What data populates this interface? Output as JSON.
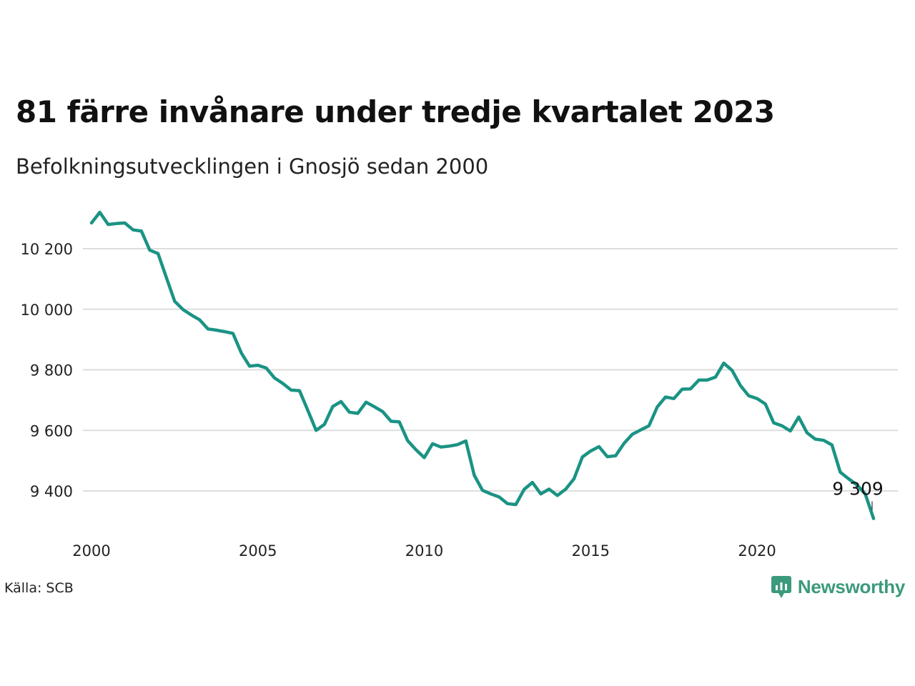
{
  "title": "81 färre invånare under tredje kvartalet 2023",
  "subtitle": "Befolkningsutvecklingen i Gnosjö sedan 2000",
  "source": "Källa: SCB",
  "brand": {
    "name": "Newsworthy",
    "icon": "newsworthy-logo-icon",
    "color": "#3b9a7c"
  },
  "colors": {
    "line": "#1a9384",
    "grid": "#dddddd",
    "text": "#111111"
  },
  "chart_data": {
    "type": "line",
    "title": "81 färre invånare under tredje kvartalet 2023",
    "subtitle": "Befolkningsutvecklingen i Gnosjö sedan 2000",
    "x_ticks": [
      2000,
      2005,
      2010,
      2015,
      2020
    ],
    "y_ticks": [
      9400,
      9600,
      9800,
      10000,
      10200
    ],
    "y_tick_labels": [
      "9 400",
      "9 600",
      "9 800",
      "10 000",
      "10 200"
    ],
    "ylim": [
      9320,
      10320
    ],
    "grid": "horizontal",
    "end_label": "9 309",
    "series": [
      {
        "x": [
          2000.0,
          2000.25,
          2000.5,
          2000.75,
          2001.0,
          2001.25,
          2001.5,
          2001.75,
          2002.0,
          2002.25,
          2002.5,
          2002.75,
          2003.0,
          2003.25,
          2003.5,
          2003.75,
          2004.0,
          2004.25,
          2004.5,
          2004.75,
          2005.0,
          2005.25,
          2005.5,
          2005.75,
          2006.0,
          2006.25,
          2006.5,
          2006.75,
          2007.0,
          2007.25,
          2007.5,
          2007.75,
          2008.0,
          2008.25,
          2008.5,
          2008.75,
          2009.0,
          2009.25,
          2009.5,
          2009.75,
          2010.0,
          2010.25,
          2010.5,
          2010.75,
          2011.0,
          2011.25,
          2011.5,
          2011.75,
          2012.0,
          2012.25,
          2012.5,
          2012.75,
          2013.0,
          2013.25,
          2013.5,
          2013.75,
          2014.0,
          2014.25,
          2014.5,
          2014.75,
          2015.0,
          2015.25,
          2015.5,
          2015.75,
          2016.0,
          2016.25,
          2016.5,
          2016.75,
          2017.0,
          2017.25,
          2017.5,
          2017.75,
          2018.0,
          2018.25,
          2018.5,
          2018.75,
          2019.0,
          2019.25,
          2019.5,
          2019.75,
          2020.0,
          2020.25,
          2020.5,
          2020.75,
          2021.0,
          2021.25,
          2021.5,
          2021.75,
          2022.0,
          2022.25,
          2022.5,
          2022.75,
          2023.0,
          2023.25,
          2023.5
        ],
        "y": [
          10285,
          10320,
          10280,
          10283,
          10285,
          10262,
          10258,
          10195,
          10184,
          10105,
          10026,
          9999,
          9981,
          9965,
          9935,
          9931,
          9926,
          9920,
          9856,
          9812,
          9815,
          9806,
          9773,
          9755,
          9733,
          9731,
          9666,
          9600,
          9620,
          9679,
          9695,
          9660,
          9656,
          9693,
          9678,
          9662,
          9630,
          9628,
          9566,
          9536,
          9510,
          9556,
          9545,
          9548,
          9553,
          9565,
          9452,
          9402,
          9390,
          9380,
          9358,
          9355,
          9405,
          9428,
          9390,
          9406,
          9385,
          9406,
          9440,
          9512,
          9532,
          9546,
          9513,
          9516,
          9557,
          9587,
          9601,
          9615,
          9677,
          9710,
          9705,
          9736,
          9737,
          9766,
          9766,
          9776,
          9822,
          9798,
          9748,
          9714,
          9705,
          9687,
          9625,
          9615,
          9598,
          9644,
          9592,
          9571,
          9567,
          9552,
          9462,
          9440,
          9420,
          9390,
          9309
        ]
      }
    ]
  }
}
